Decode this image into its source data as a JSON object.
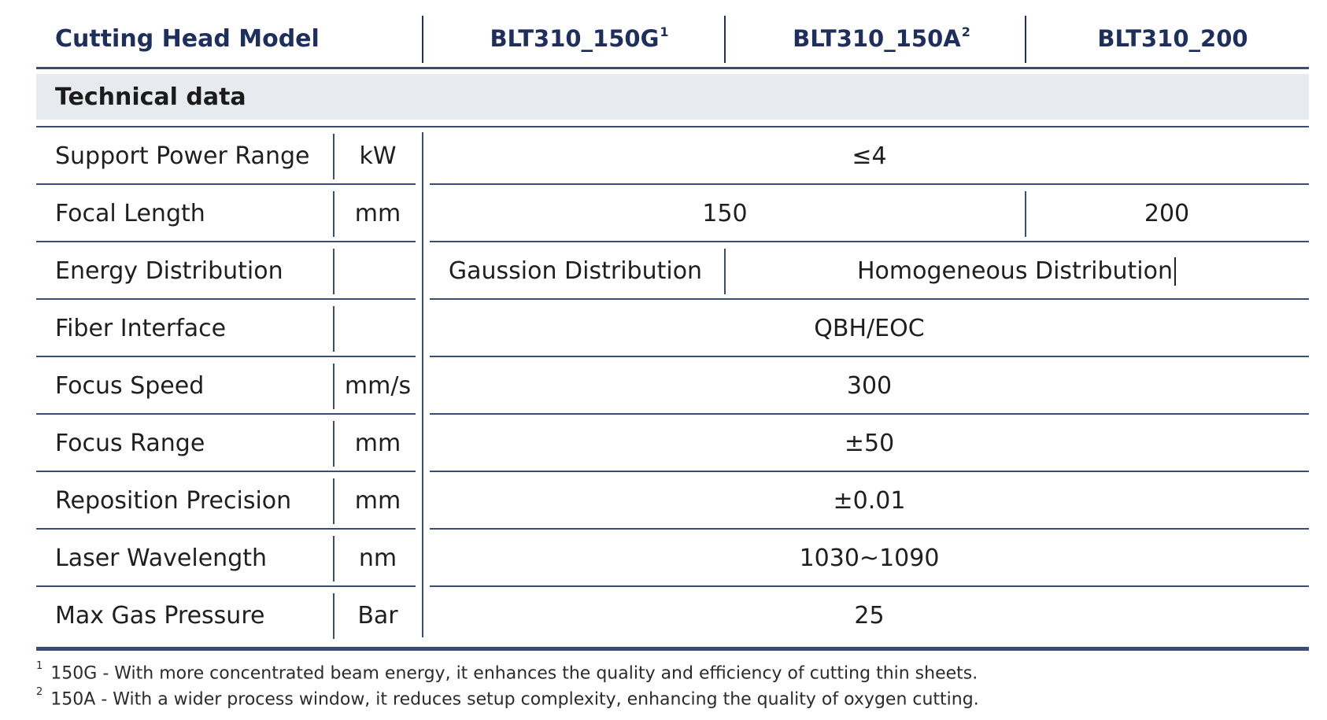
{
  "header": {
    "label": "Cutting Head Model",
    "models": [
      {
        "name": "BLT310_150G",
        "sup": "1"
      },
      {
        "name": "BLT310_150A",
        "sup": "2"
      },
      {
        "name": "BLT310_200",
        "sup": ""
      }
    ]
  },
  "section": {
    "title": "Technical data"
  },
  "rows": [
    {
      "param": "Support Power Range",
      "unit": "kW",
      "values": [
        "≤4"
      ]
    },
    {
      "param": "Focal Length",
      "unit": "mm",
      "values": [
        "150",
        "200"
      ]
    },
    {
      "param": "Energy Distribution",
      "unit": "",
      "values": [
        "Gaussion Distribution",
        "Homogeneous Distribution"
      ]
    },
    {
      "param": "Fiber Interface",
      "unit": "",
      "values": [
        "QBH/EOC"
      ]
    },
    {
      "param": "Focus Speed",
      "unit": "mm/s",
      "values": [
        "300"
      ]
    },
    {
      "param": "Focus Range",
      "unit": "mm",
      "values": [
        "±50"
      ]
    },
    {
      "param": "Reposition Precision",
      "unit": "mm",
      "values": [
        "±0.01"
      ]
    },
    {
      "param": "Laser Wavelength",
      "unit": "nm",
      "values": [
        "1030~1090"
      ]
    },
    {
      "param": "Max Gas Pressure",
      "unit": "Bar",
      "values": [
        "25"
      ]
    }
  ],
  "footnotes": [
    {
      "mark": "1",
      "text": "150G - With more concentrated beam energy, it enhances the quality and efficiency of cutting thin sheets."
    },
    {
      "mark": "2",
      "text": "150A - With a wider process window, it reduces setup complexity, enhancing the quality of oxygen cutting."
    }
  ],
  "colors": {
    "header_text": "#1e2f5e",
    "rule": "#3a4d75",
    "band_bg": "#e7eaee"
  }
}
